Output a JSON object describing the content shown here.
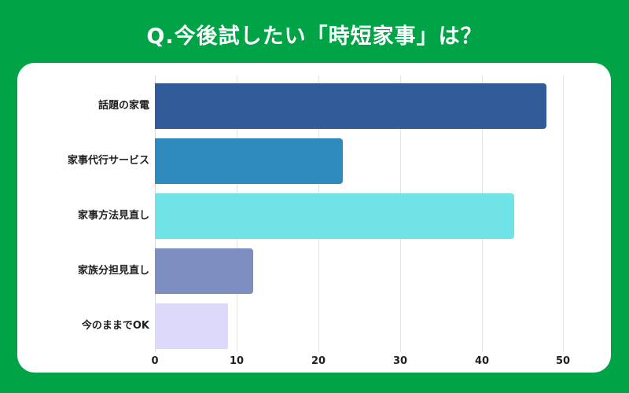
{
  "title": "Q.今後試したい「時短家事」は？",
  "colors": {
    "background": "#00a447",
    "card": "#ffffff",
    "bars": [
      "#325c99",
      "#2f8abd",
      "#6fe3e6",
      "#7d8ec0",
      "#dcd9fb"
    ]
  },
  "chart_data": {
    "type": "bar",
    "orientation": "horizontal",
    "title": "Q.今後試したい「時短家事」は？",
    "categories": [
      "話題の家電",
      "家事代行サービス",
      "家事方法見直し",
      "家族分担見直し",
      "今のままでOK"
    ],
    "values": [
      48,
      23,
      44,
      12,
      9
    ],
    "xlabel": "",
    "ylabel": "",
    "xlim": [
      0,
      52
    ],
    "xticks": [
      0,
      10,
      20,
      30,
      40,
      50
    ],
    "grid": true,
    "legend": null
  },
  "axis": {
    "ticks": [
      "0",
      "10",
      "20",
      "30",
      "40",
      "50"
    ]
  }
}
